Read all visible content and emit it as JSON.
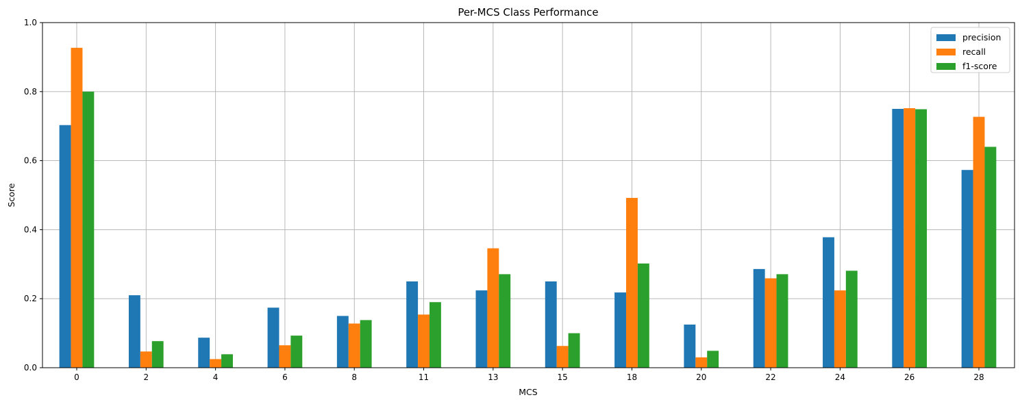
{
  "chart_data": {
    "type": "bar",
    "title": "Per-MCS Class Performance",
    "xlabel": "MCS",
    "ylabel": "Score",
    "ylim": [
      0,
      1.0
    ],
    "yticks": [
      "0.0",
      "0.2",
      "0.4",
      "0.6",
      "0.8",
      "1.0"
    ],
    "grid": true,
    "legend_position": "top-right",
    "categories": [
      "0",
      "2",
      "4",
      "6",
      "8",
      "11",
      "13",
      "15",
      "18",
      "20",
      "22",
      "24",
      "26",
      "28"
    ],
    "series": [
      {
        "name": "precision",
        "color": "#1f77b4",
        "values": [
          0.703,
          0.21,
          0.087,
          0.174,
          0.15,
          0.25,
          0.224,
          0.25,
          0.218,
          0.125,
          0.286,
          0.378,
          0.75,
          0.573
        ]
      },
      {
        "name": "recall",
        "color": "#ff7f0e",
        "values": [
          0.927,
          0.047,
          0.025,
          0.065,
          0.128,
          0.154,
          0.346,
          0.063,
          0.492,
          0.03,
          0.259,
          0.224,
          0.752,
          0.727
        ]
      },
      {
        "name": "f1-score",
        "color": "#2ca02c",
        "values": [
          0.8,
          0.077,
          0.039,
          0.093,
          0.138,
          0.19,
          0.271,
          0.1,
          0.302,
          0.049,
          0.271,
          0.281,
          0.749,
          0.64
        ]
      }
    ]
  }
}
